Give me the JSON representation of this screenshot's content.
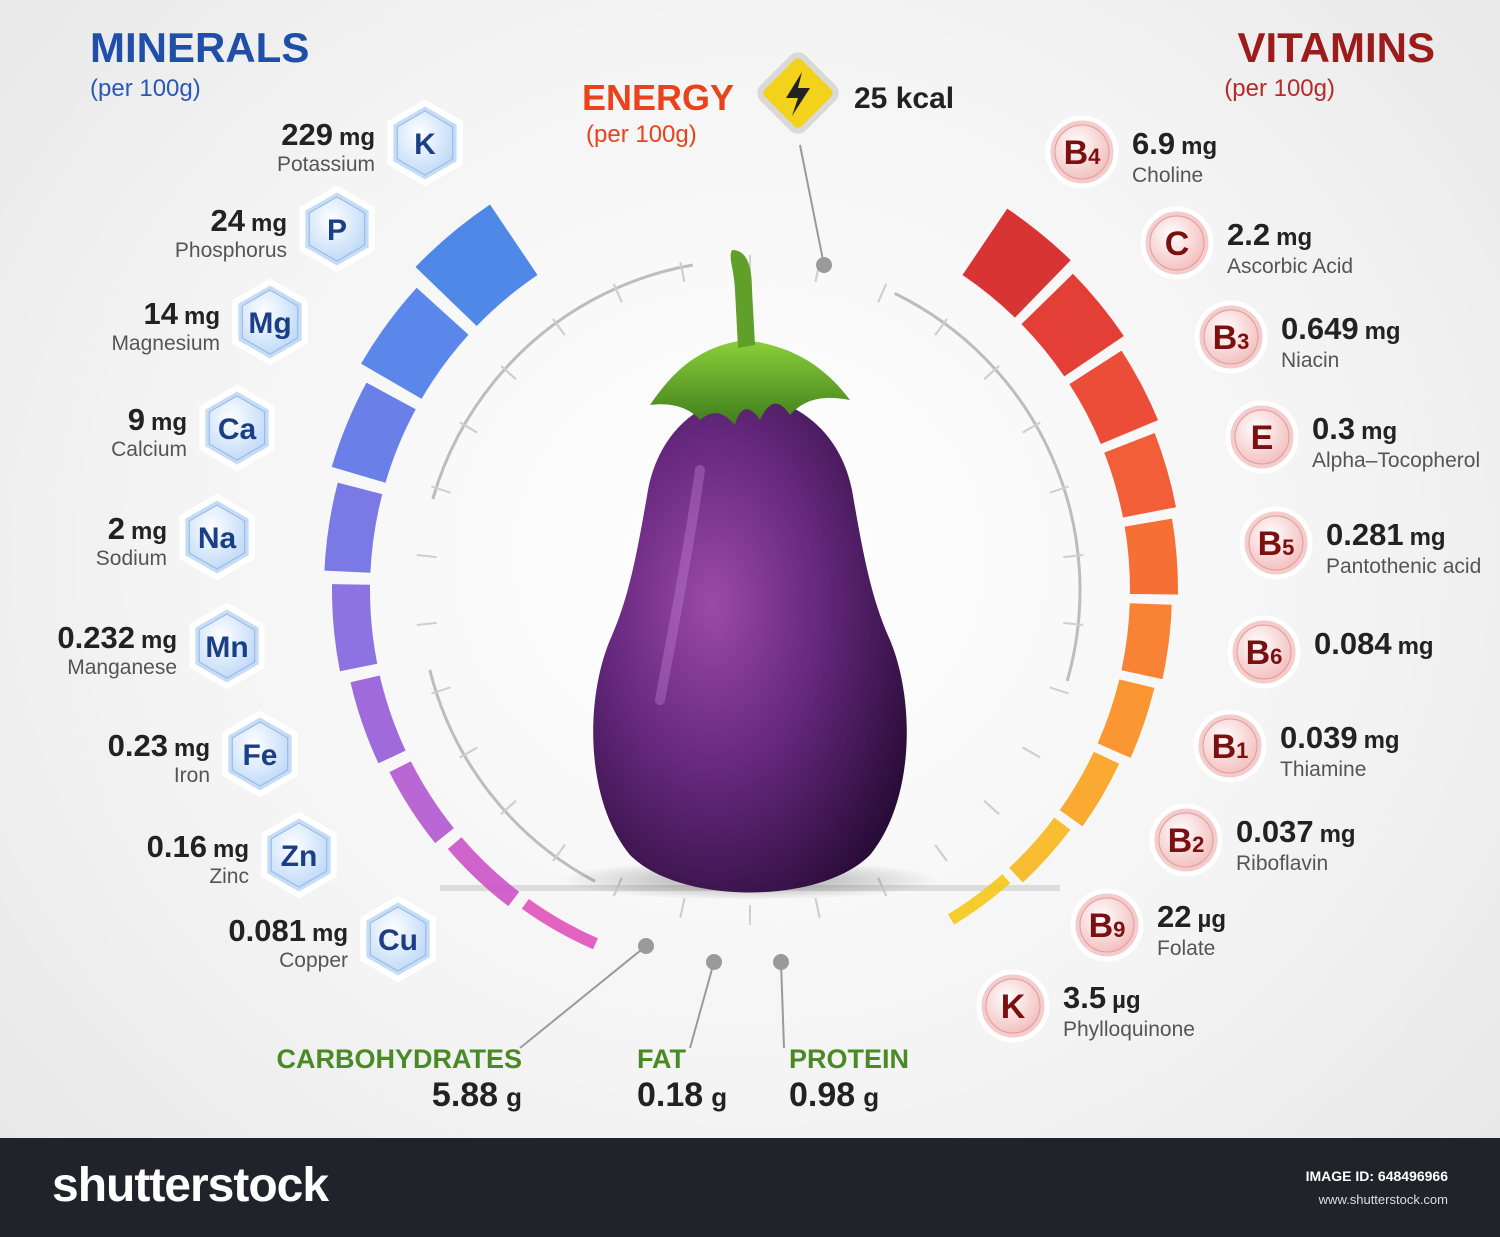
{
  "minerals_title": "MINERALS",
  "minerals_sub": "(per 100g)",
  "vitamins_title": "VITAMINS",
  "vitamins_sub": "(per 100g)",
  "energy": {
    "label": "ENERGY",
    "sub": "(per 100g)",
    "value": "25 kcal"
  },
  "minerals": [
    {
      "symbol": "K",
      "value": "229",
      "unit": "mg",
      "name": "Potassium"
    },
    {
      "symbol": "P",
      "value": "24",
      "unit": "mg",
      "name": "Phosphorus"
    },
    {
      "symbol": "Mg",
      "value": "14",
      "unit": "mg",
      "name": "Magnesium"
    },
    {
      "symbol": "Ca",
      "value": "9",
      "unit": "mg",
      "name": "Calcium"
    },
    {
      "symbol": "Na",
      "value": "2",
      "unit": "mg",
      "name": "Sodium"
    },
    {
      "symbol": "Mn",
      "value": "0.232",
      "unit": "mg",
      "name": "Manganese"
    },
    {
      "symbol": "Fe",
      "value": "0.23",
      "unit": "mg",
      "name": "Iron"
    },
    {
      "symbol": "Zn",
      "value": "0.16",
      "unit": "mg",
      "name": "Zinc"
    },
    {
      "symbol": "Cu",
      "value": "0.081",
      "unit": "mg",
      "name": "Copper"
    }
  ],
  "vitamins": [
    {
      "symbol": "B",
      "sub": "4",
      "value": "6.9",
      "unit": "mg",
      "name": "Choline"
    },
    {
      "symbol": "C",
      "sub": "",
      "value": "2.2",
      "unit": "mg",
      "name": "Ascorbic Acid"
    },
    {
      "symbol": "B",
      "sub": "3",
      "value": "0.649",
      "unit": "mg",
      "name": "Niacin"
    },
    {
      "symbol": "E",
      "sub": "",
      "value": "0.3",
      "unit": "mg",
      "name": "Alpha–Tocopherol"
    },
    {
      "symbol": "B",
      "sub": "5",
      "value": "0.281",
      "unit": "mg",
      "name": "Pantothenic acid"
    },
    {
      "symbol": "B",
      "sub": "6",
      "value": "0.084",
      "unit": "mg",
      "name": ""
    },
    {
      "symbol": "B",
      "sub": "1",
      "value": "0.039",
      "unit": "mg",
      "name": "Thiamine"
    },
    {
      "symbol": "B",
      "sub": "2",
      "value": "0.037",
      "unit": "mg",
      "name": "Riboflavin"
    },
    {
      "symbol": "B",
      "sub": "9",
      "value": "22",
      "unit": "µg",
      "name": "Folate"
    },
    {
      "symbol": "K",
      "sub": "",
      "value": "3.5",
      "unit": "µg",
      "name": "Phylloquinone"
    }
  ],
  "macros": [
    {
      "label": "CARBOHYDRATES",
      "value": "5.88",
      "unit": "g"
    },
    {
      "label": "FAT",
      "value": "0.18",
      "unit": "g"
    },
    {
      "label": "PROTEIN",
      "value": "0.98",
      "unit": "g"
    }
  ],
  "footer": {
    "brand": "shutterstock",
    "image_id": "IMAGE ID: 648496966",
    "site": "www.shutterstock.com"
  },
  "colors": {
    "minerals_title": "#1f4fa8",
    "vitamins_title": "#9c1b1b",
    "energy": "#e8431a",
    "macro_label": "#4a8a24",
    "mineral_text": "#1b3f86"
  }
}
